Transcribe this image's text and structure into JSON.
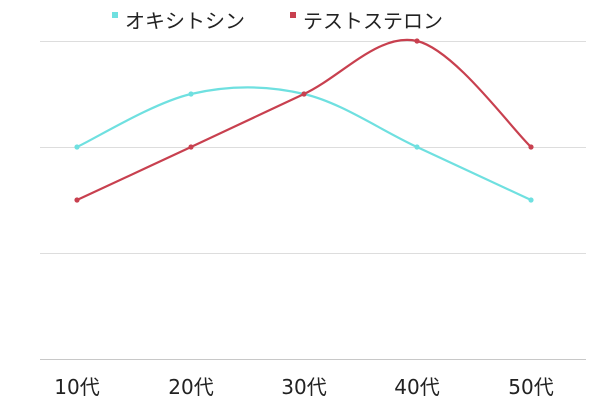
{
  "chart_data": {
    "type": "line",
    "categories": [
      "10代",
      "20代",
      "30代",
      "40代",
      "50代"
    ],
    "series": [
      {
        "name": "オキシトシン",
        "values": [
          2,
          2.5,
          2.5,
          2,
          1.5
        ],
        "color": "#6fe0e0"
      },
      {
        "name": "テストステロン",
        "values": [
          1.5,
          2,
          2.5,
          3,
          2
        ],
        "color": "#c8404f"
      }
    ],
    "ylim": [
      0,
      3
    ],
    "grid": true,
    "legend_position": "top",
    "smooth": true,
    "gridline_color": "#dddddd",
    "axis_color": "#c8c8c8"
  }
}
